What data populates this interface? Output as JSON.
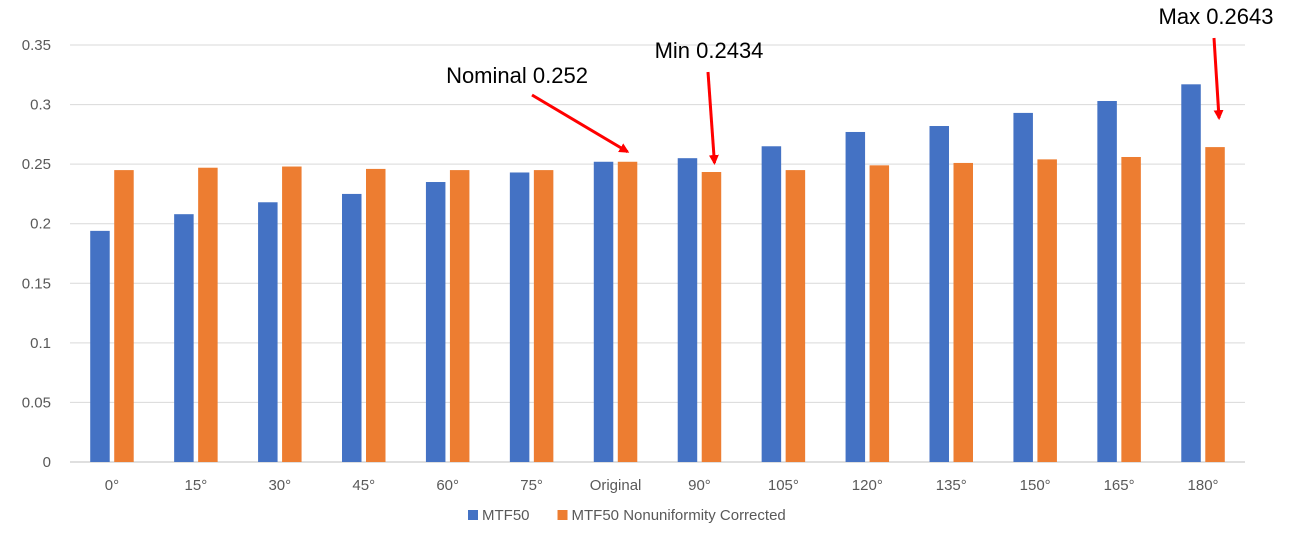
{
  "chart_data": {
    "type": "bar",
    "categories": [
      "0°",
      "15°",
      "30°",
      "45°",
      "60°",
      "75°",
      "Original",
      "90°",
      "105°",
      "120°",
      "135°",
      "150°",
      "165°",
      "180°"
    ],
    "series": [
      {
        "name": "MTF50",
        "color": "#4472C4",
        "values": [
          0.194,
          0.208,
          0.218,
          0.225,
          0.235,
          0.243,
          0.252,
          0.255,
          0.265,
          0.277,
          0.282,
          0.293,
          0.303,
          0.317
        ]
      },
      {
        "name": "MTF50 Nonuniformity Corrected",
        "color": "#ED7D31",
        "values": [
          0.245,
          0.247,
          0.248,
          0.246,
          0.245,
          0.245,
          0.252,
          0.2434,
          0.245,
          0.249,
          0.251,
          0.254,
          0.256,
          0.2643
        ]
      }
    ],
    "yticks": [
      "0",
      "0.05",
      "0.1",
      "0.15",
      "0.2",
      "0.25",
      "0.3",
      "0.35"
    ],
    "ylim": [
      0,
      0.35
    ],
    "grid": true,
    "legend_position": "bottom",
    "annotation_color": "#FF0000",
    "annotations": [
      {
        "text": "Nominal 0.252",
        "category": "Original",
        "series": 1
      },
      {
        "text": "Min 0.2434",
        "category": "90°",
        "series": 1
      },
      {
        "text": "Max 0.2643",
        "category": "180°",
        "series": 1
      }
    ]
  }
}
